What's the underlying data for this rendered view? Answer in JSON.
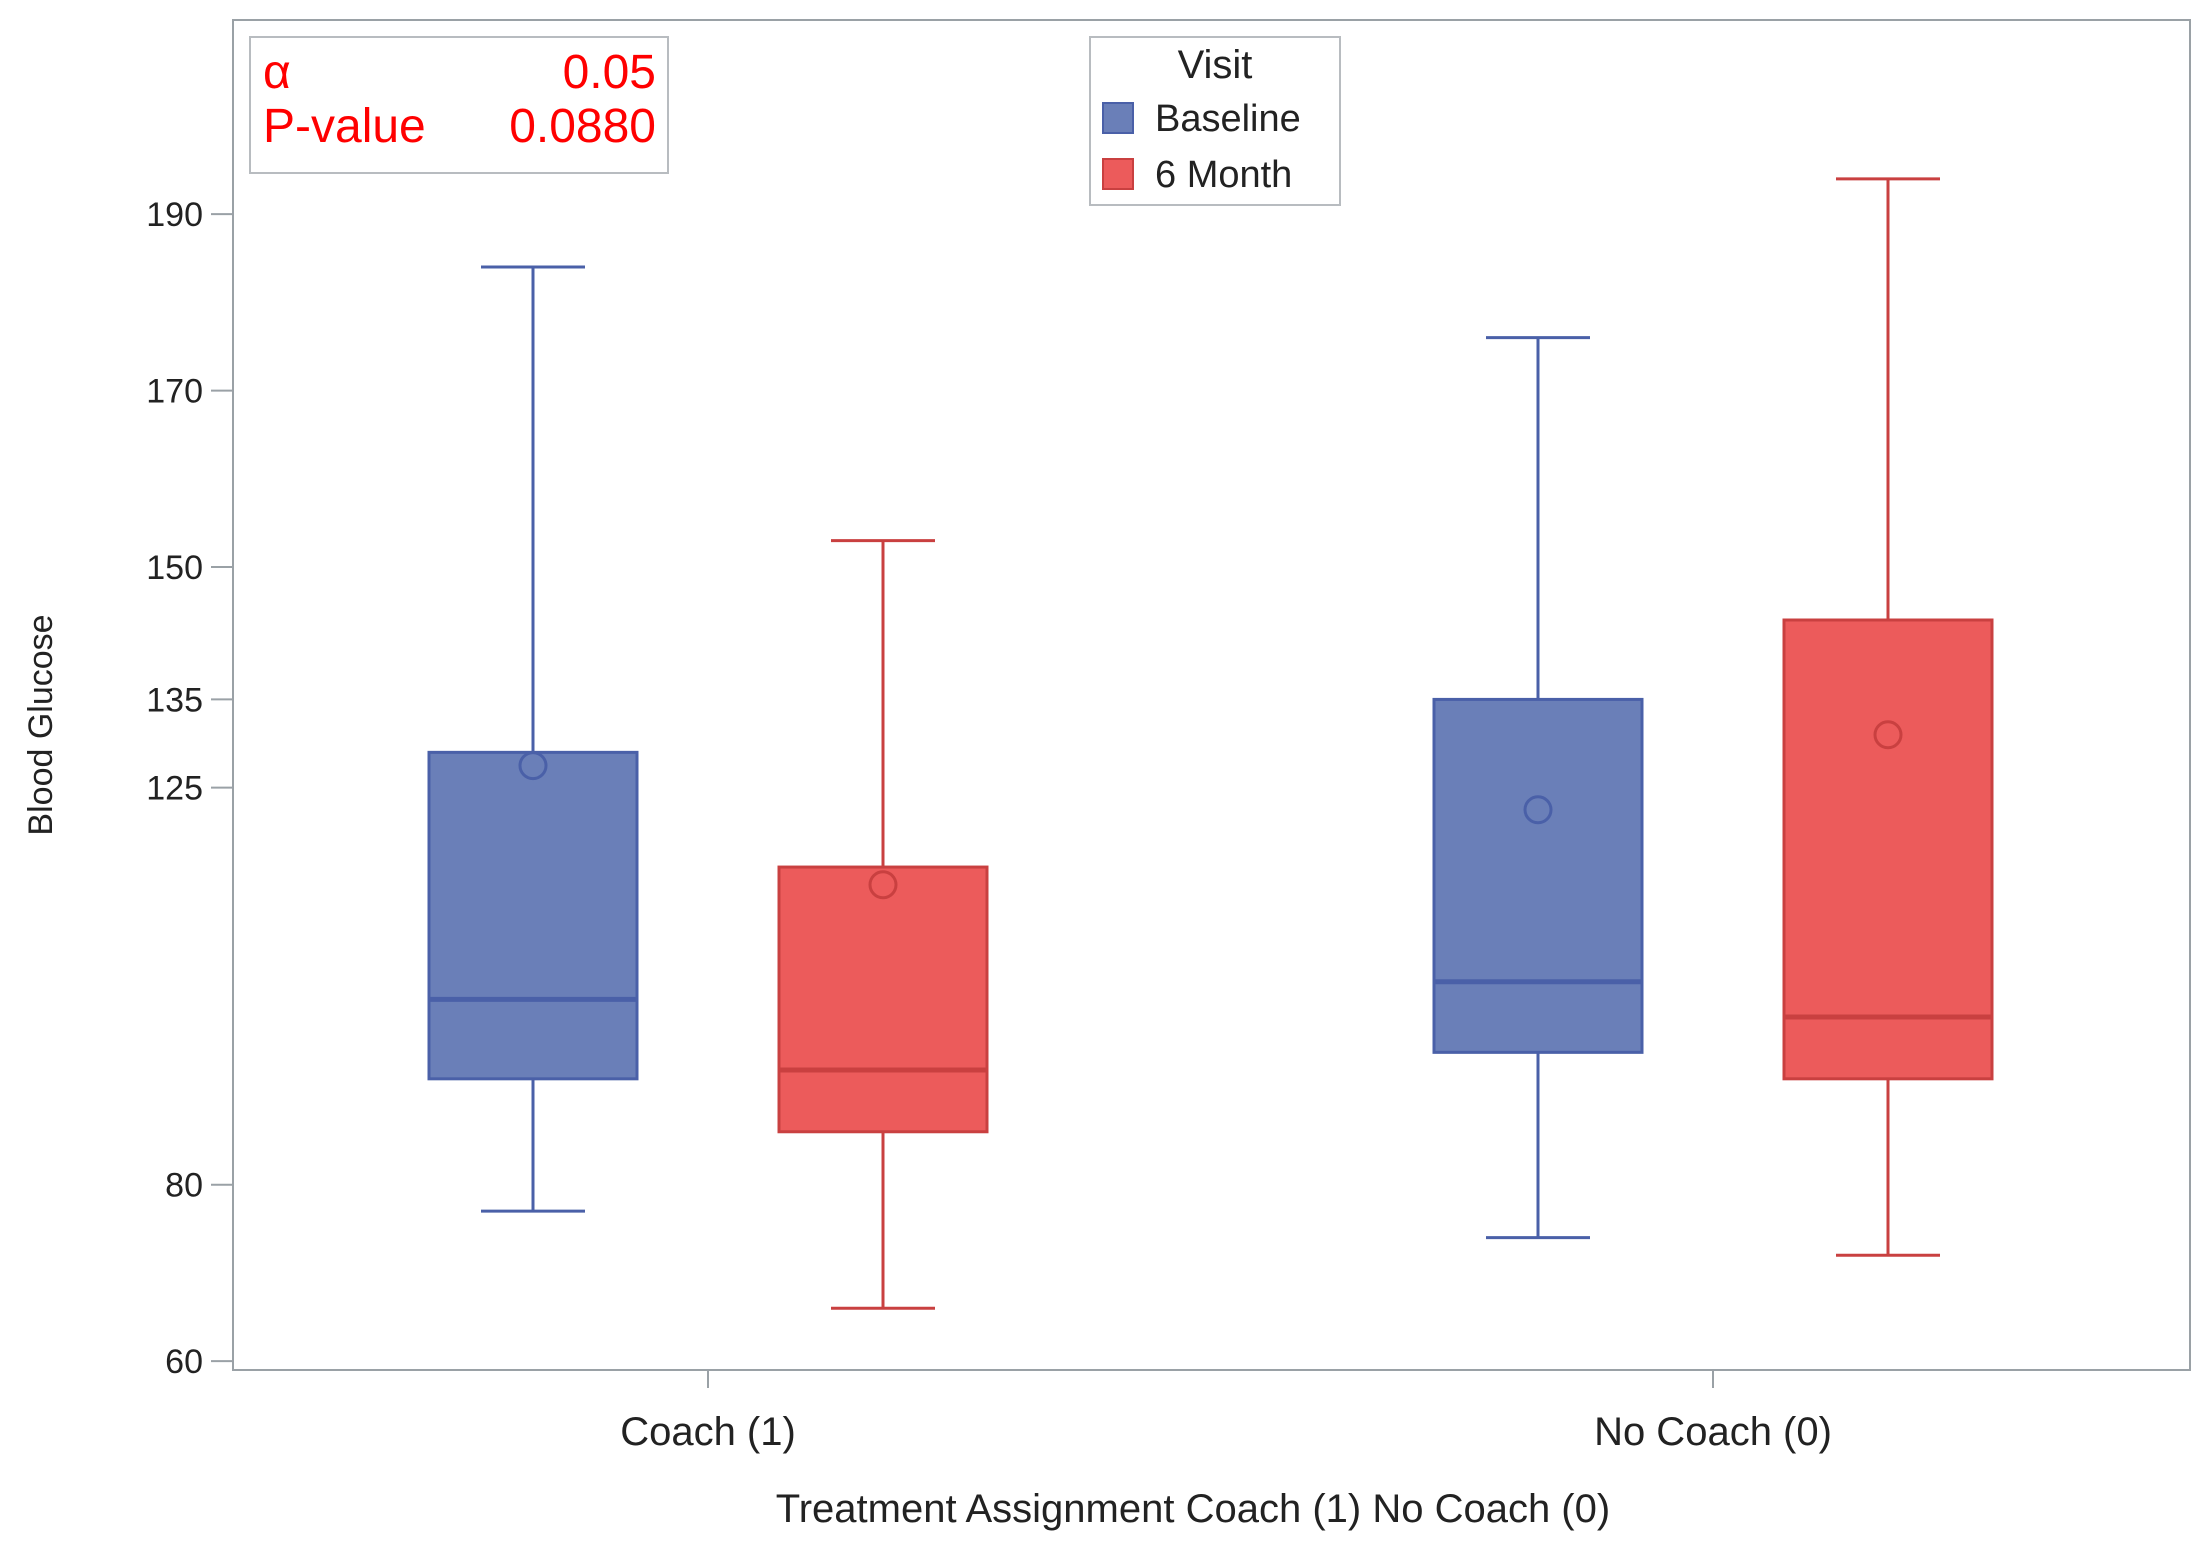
{
  "chart_data": {
    "type": "boxplot",
    "xlabel": "Treatment Assignment Coach (1) No Coach (0)",
    "ylabel": "Blood Glucose",
    "ylim": [
      59,
      212
    ],
    "yticks": [
      60,
      80,
      125,
      135,
      150,
      170,
      190
    ],
    "categories": [
      "Coach (1)",
      "No Coach (0)"
    ],
    "legend": {
      "title": "Visit",
      "position": "top-center",
      "entries": [
        {
          "name": "Baseline",
          "color": "#6a7fb8",
          "stroke": "#4a60a8"
        },
        {
          "name": "6 Month",
          "color": "#ec5b5b",
          "stroke": "#c94040"
        }
      ]
    },
    "series": [
      {
        "name": "Baseline",
        "boxes": [
          {
            "category": "Coach (1)",
            "min": 77,
            "q1": 92,
            "median": 101,
            "q3": 129,
            "max": 184,
            "mean": 127.5
          },
          {
            "category": "No Coach (0)",
            "min": 74,
            "q1": 95,
            "median": 103,
            "q3": 135,
            "max": 176,
            "mean": 122.5
          }
        ]
      },
      {
        "name": "6 Month",
        "boxes": [
          {
            "category": "Coach (1)",
            "min": 66,
            "q1": 86,
            "median": 93,
            "q3": 116,
            "max": 153,
            "mean": 114
          },
          {
            "category": "No Coach (0)",
            "min": 72,
            "q1": 92,
            "median": 99,
            "q3": 144,
            "max": 194,
            "mean": 131
          }
        ]
      }
    ],
    "stats_box": {
      "position": "top-left",
      "color": "#ff0000",
      "rows": [
        {
          "label": "α",
          "value": "0.05"
        },
        {
          "label": "P-value",
          "value": "0.0880"
        }
      ]
    }
  }
}
